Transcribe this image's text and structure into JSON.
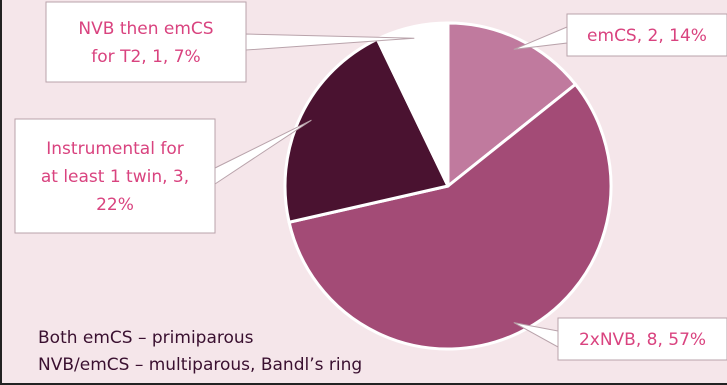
{
  "colors": {
    "background": "#f5e6ea",
    "label_text": "#d9437f",
    "callout_border": "#b9a3ab",
    "slice_border": "#ffffff",
    "note_text": "#3a1030",
    "frame": "#222222"
  },
  "chart_data": {
    "type": "pie",
    "title": "",
    "start_angle_deg": 0,
    "direction": "clockwise",
    "slices": [
      {
        "label": "emCS",
        "value": 2,
        "percent": "14%",
        "color": "#c07a9e",
        "callout_lines": [
          "emCS, 2, 14%"
        ]
      },
      {
        "label": "2xNVB",
        "value": 8,
        "percent": "57%",
        "color": "#a34b76",
        "callout_lines": [
          "2xNVB, 8, 57%"
        ]
      },
      {
        "label": "Instrumental for at least 1 twin",
        "value": 3,
        "percent": "22%",
        "color": "#4a1230",
        "callout_lines": [
          "Instrumental for",
          "at least 1 twin, 3,",
          "22%"
        ]
      },
      {
        "label": "NVB then emCS for T2",
        "value": 1,
        "percent": "7%",
        "color": "#ffffff",
        "callout_lines": [
          "NVB then emCS",
          "for T2, 1, 7%"
        ]
      }
    ],
    "notes": [
      "Both emCS – primiparous",
      "NVB/emCS – multiparous, Bandl’s ring"
    ]
  }
}
